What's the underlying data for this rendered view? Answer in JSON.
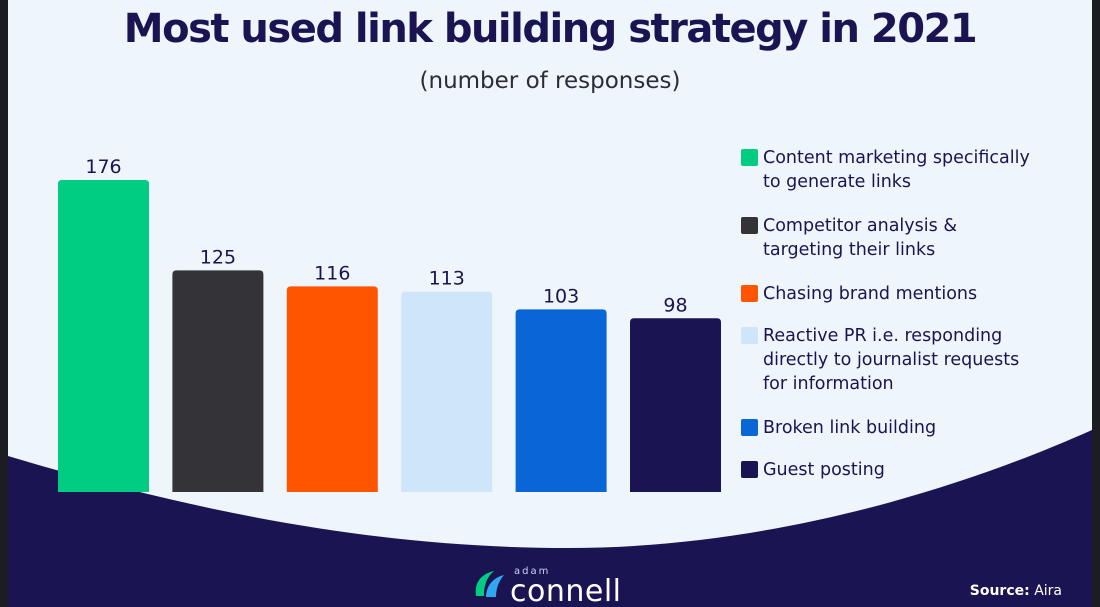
{
  "title": "Most used link building strategy in 2021",
  "subtitle": "(number of responses)",
  "brand": {
    "small": "adam",
    "name": "connell"
  },
  "source": {
    "label": "Source:",
    "value": "Aira"
  },
  "colors": {
    "background": "#eef5fb",
    "wave": "#1b1452",
    "text": "#1b1452"
  },
  "chart_data": {
    "type": "bar",
    "categories": [
      "Content marketing specifically to generate links",
      "Competitor analysis & targeting their links",
      "Chasing brand mentions",
      "Reactive PR i.e. responding directly to journalist requests for information",
      "Broken link building",
      "Guest posting"
    ],
    "legend_lines": [
      [
        "Content marketing specifically",
        "to generate links"
      ],
      [
        "Competitor analysis &",
        "targeting their links"
      ],
      [
        "Chasing brand mentions"
      ],
      [
        "Reactive PR i.e. responding",
        "directly to journalist requests",
        "for information"
      ],
      [
        "Broken link building"
      ],
      [
        "Guest posting"
      ]
    ],
    "values": [
      176,
      125,
      116,
      113,
      103,
      98
    ],
    "colors": [
      "#00cc82",
      "#333338",
      "#ff5500",
      "#cfe6fa",
      "#0a66d6",
      "#1b1452"
    ],
    "ylim": [
      0,
      176
    ],
    "grid": false,
    "legend_position": "right",
    "data_labels": true
  }
}
